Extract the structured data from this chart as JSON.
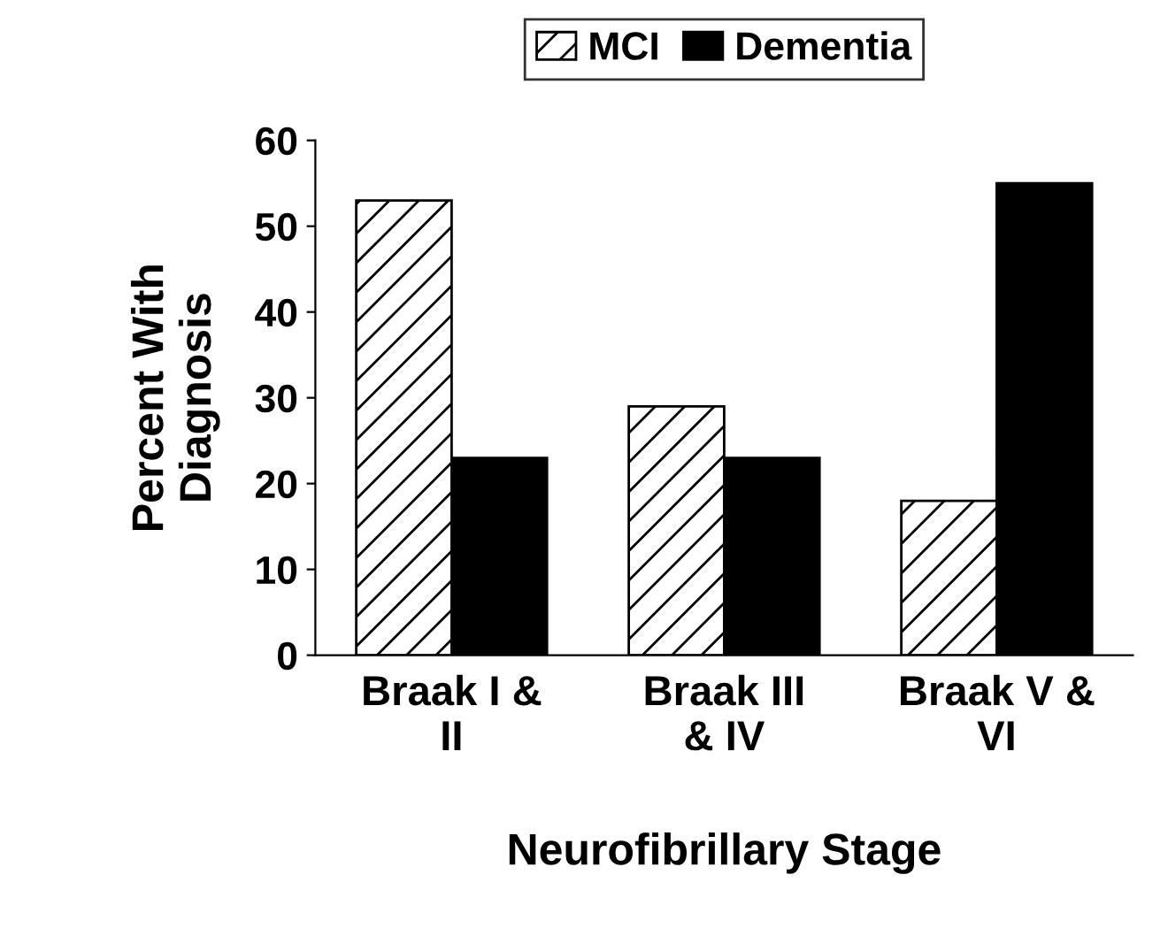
{
  "chart_data": {
    "type": "bar",
    "categories": [
      "Braak I &\nII",
      "Braak III\n& IV",
      "Braak V &\nVI"
    ],
    "series": [
      {
        "name": "MCI",
        "color": "#ffffff",
        "values": [
          53,
          29,
          18
        ]
      },
      {
        "name": "Dementia",
        "color": "#000000",
        "values": [
          23,
          23,
          55
        ]
      }
    ],
    "ylabel": "Percent With\nDiagnosis",
    "xlabel": "Neurofibrillary Stage",
    "ylim": [
      0,
      60
    ],
    "yticks": [
      0,
      10,
      20,
      30,
      40,
      50,
      60
    ],
    "grid": false,
    "legend": "top"
  }
}
